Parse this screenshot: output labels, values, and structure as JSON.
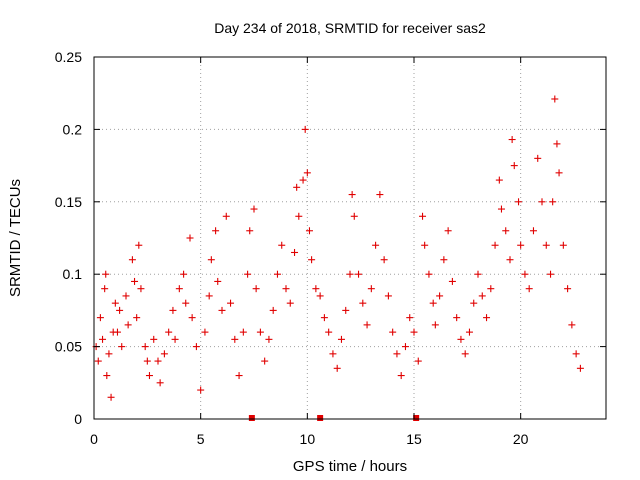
{
  "chart_data": {
    "type": "scatter",
    "title": "Day 234 of 2018, SRMTID for receiver sas2",
    "xlabel": "GPS time / hours",
    "ylabel": "SRMTID / TECUs",
    "xlim": [
      0,
      24
    ],
    "ylim": [
      0,
      0.25
    ],
    "x_ticks": [
      0,
      5,
      10,
      15,
      20
    ],
    "y_ticks": [
      0,
      0.05,
      0.1,
      0.15,
      0.2,
      0.25
    ],
    "y_tick_labels": [
      "0",
      "0.05",
      "0.1",
      "0.15",
      "0.2",
      "0.25"
    ],
    "grid": true,
    "marker": "+",
    "color": "#e00000",
    "series": [
      {
        "name": "SRMTID",
        "points": [
          [
            0.1,
            0.05
          ],
          [
            0.2,
            0.04
          ],
          [
            0.3,
            0.07
          ],
          [
            0.4,
            0.055
          ],
          [
            0.5,
            0.09
          ],
          [
            0.55,
            0.1
          ],
          [
            0.6,
            0.03
          ],
          [
            0.7,
            0.045
          ],
          [
            0.8,
            0.015
          ],
          [
            0.9,
            0.06
          ],
          [
            1.0,
            0.08
          ],
          [
            1.1,
            0.06
          ],
          [
            1.2,
            0.075
          ],
          [
            1.3,
            0.05
          ],
          [
            1.5,
            0.085
          ],
          [
            1.6,
            0.065
          ],
          [
            1.8,
            0.11
          ],
          [
            1.9,
            0.095
          ],
          [
            2.0,
            0.07
          ],
          [
            2.1,
            0.12
          ],
          [
            2.2,
            0.09
          ],
          [
            2.4,
            0.05
          ],
          [
            2.5,
            0.04
          ],
          [
            2.6,
            0.03
          ],
          [
            2.8,
            0.055
          ],
          [
            3.0,
            0.04
          ],
          [
            3.1,
            0.025
          ],
          [
            3.3,
            0.045
          ],
          [
            3.5,
            0.06
          ],
          [
            3.7,
            0.075
          ],
          [
            3.8,
            0.055
          ],
          [
            4.0,
            0.09
          ],
          [
            4.2,
            0.1
          ],
          [
            4.3,
            0.08
          ],
          [
            4.5,
            0.125
          ],
          [
            4.6,
            0.07
          ],
          [
            4.8,
            0.05
          ],
          [
            5.0,
            0.02
          ],
          [
            5.2,
            0.06
          ],
          [
            5.4,
            0.085
          ],
          [
            5.5,
            0.11
          ],
          [
            5.7,
            0.13
          ],
          [
            5.8,
            0.095
          ],
          [
            6.0,
            0.075
          ],
          [
            6.2,
            0.14
          ],
          [
            6.4,
            0.08
          ],
          [
            6.6,
            0.055
          ],
          [
            6.8,
            0.03
          ],
          [
            7.0,
            0.06
          ],
          [
            7.2,
            0.1
          ],
          [
            7.3,
            0.13
          ],
          [
            7.5,
            0.145
          ],
          [
            7.6,
            0.09
          ],
          [
            7.8,
            0.06
          ],
          [
            8.0,
            0.04
          ],
          [
            8.2,
            0.055
          ],
          [
            8.4,
            0.075
          ],
          [
            8.6,
            0.1
          ],
          [
            8.8,
            0.12
          ],
          [
            9.0,
            0.09
          ],
          [
            9.2,
            0.08
          ],
          [
            9.4,
            0.115
          ],
          [
            9.5,
            0.16
          ],
          [
            9.6,
            0.14
          ],
          [
            9.8,
            0.165
          ],
          [
            9.9,
            0.2
          ],
          [
            10.0,
            0.17
          ],
          [
            10.1,
            0.13
          ],
          [
            10.2,
            0.11
          ],
          [
            10.4,
            0.09
          ],
          [
            10.6,
            0.085
          ],
          [
            10.8,
            0.07
          ],
          [
            11.0,
            0.06
          ],
          [
            11.2,
            0.045
          ],
          [
            11.4,
            0.035
          ],
          [
            11.6,
            0.055
          ],
          [
            11.8,
            0.075
          ],
          [
            12.0,
            0.1
          ],
          [
            12.1,
            0.155
          ],
          [
            12.2,
            0.14
          ],
          [
            12.4,
            0.1
          ],
          [
            12.6,
            0.08
          ],
          [
            12.8,
            0.065
          ],
          [
            13.0,
            0.09
          ],
          [
            13.2,
            0.12
          ],
          [
            13.4,
            0.155
          ],
          [
            13.6,
            0.11
          ],
          [
            13.8,
            0.085
          ],
          [
            14.0,
            0.06
          ],
          [
            14.2,
            0.045
          ],
          [
            14.4,
            0.03
          ],
          [
            14.6,
            0.05
          ],
          [
            14.8,
            0.07
          ],
          [
            15.0,
            0.06
          ],
          [
            15.2,
            0.04
          ],
          [
            15.4,
            0.14
          ],
          [
            15.5,
            0.12
          ],
          [
            15.7,
            0.1
          ],
          [
            15.9,
            0.08
          ],
          [
            16.0,
            0.065
          ],
          [
            16.2,
            0.085
          ],
          [
            16.4,
            0.11
          ],
          [
            16.6,
            0.13
          ],
          [
            16.8,
            0.095
          ],
          [
            17.0,
            0.07
          ],
          [
            17.2,
            0.055
          ],
          [
            17.4,
            0.045
          ],
          [
            17.6,
            0.06
          ],
          [
            17.8,
            0.08
          ],
          [
            18.0,
            0.1
          ],
          [
            18.2,
            0.085
          ],
          [
            18.4,
            0.07
          ],
          [
            18.6,
            0.09
          ],
          [
            18.8,
            0.12
          ],
          [
            19.0,
            0.165
          ],
          [
            19.1,
            0.145
          ],
          [
            19.3,
            0.13
          ],
          [
            19.5,
            0.11
          ],
          [
            19.6,
            0.193
          ],
          [
            19.7,
            0.175
          ],
          [
            19.9,
            0.15
          ],
          [
            20.0,
            0.12
          ],
          [
            20.2,
            0.1
          ],
          [
            20.4,
            0.09
          ],
          [
            20.6,
            0.13
          ],
          [
            20.8,
            0.18
          ],
          [
            21.0,
            0.15
          ],
          [
            21.2,
            0.12
          ],
          [
            21.4,
            0.1
          ],
          [
            21.5,
            0.15
          ],
          [
            21.6,
            0.221
          ],
          [
            21.7,
            0.19
          ],
          [
            21.8,
            0.17
          ],
          [
            22.0,
            0.12
          ],
          [
            22.2,
            0.09
          ],
          [
            22.4,
            0.065
          ],
          [
            22.6,
            0.045
          ],
          [
            22.8,
            0.035
          ]
        ]
      }
    ],
    "axis_markers_x": [
      7.4,
      10.6,
      15.1
    ]
  }
}
